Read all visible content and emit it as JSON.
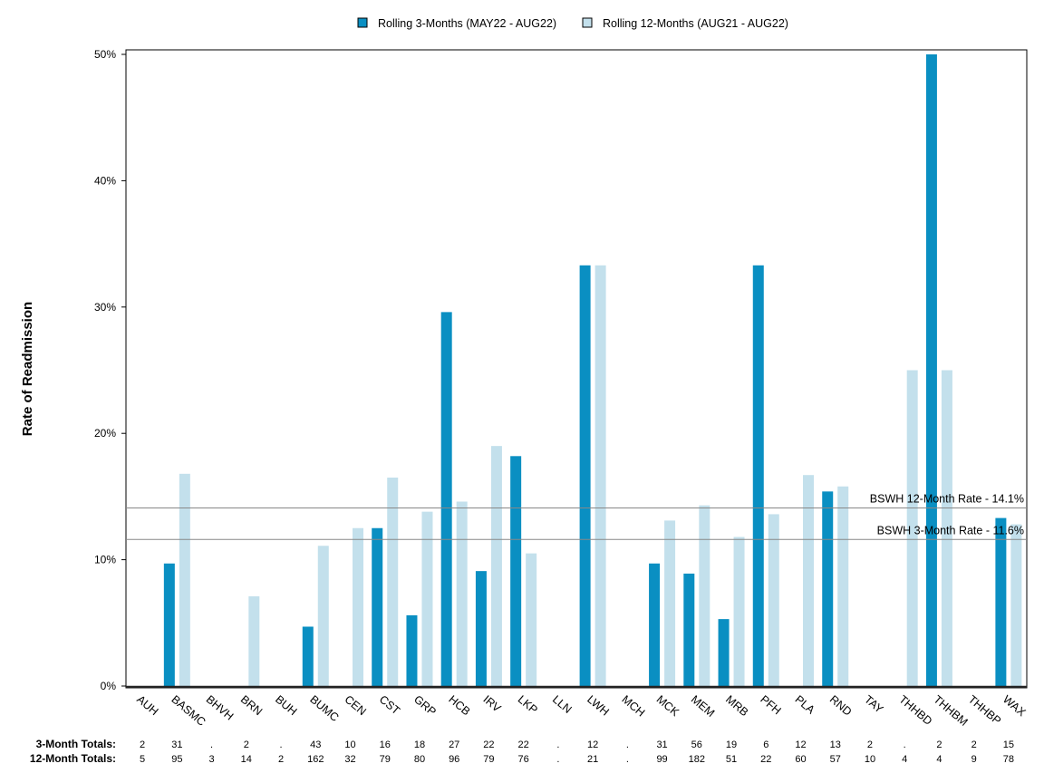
{
  "chart_data": {
    "type": "bar",
    "ylabel": "Rate of Readmission",
    "ylim": [
      0,
      50
    ],
    "yticks": [
      {
        "value": 0,
        "label": "0%"
      },
      {
        "value": 10,
        "label": "10%"
      },
      {
        "value": 20,
        "label": "20%"
      },
      {
        "value": 30,
        "label": "30%"
      },
      {
        "value": 40,
        "label": "40%"
      },
      {
        "value": 50,
        "label": "50%"
      }
    ],
    "grid": false,
    "legend_position": "top-center",
    "categories": [
      "AUH",
      "BASMC",
      "BHVH",
      "BRN",
      "BUH",
      "BUMC",
      "CEN",
      "CST",
      "GRP",
      "HCB",
      "IRV",
      "LKP",
      "LLN",
      "LWH",
      "MCH",
      "MCK",
      "MEM",
      "MRB",
      "PFH",
      "PLA",
      "RND",
      "TAY",
      "THHBD",
      "THHBM",
      "THHBP",
      "WAX"
    ],
    "series": [
      {
        "name": "Rolling 3-Months (MAY22 - AUG22)",
        "color": "#0a8fc2",
        "values": [
          0,
          9.7,
          0,
          0,
          0,
          4.7,
          0,
          12.5,
          5.6,
          29.6,
          9.1,
          18.2,
          0,
          33.3,
          0,
          9.7,
          8.9,
          5.3,
          33.3,
          0,
          15.4,
          0,
          0,
          50.0,
          0,
          13.3
        ]
      },
      {
        "name": "Rolling 12-Months (AUG21 - AUG22)",
        "color": "#c3e0ec",
        "values": [
          0,
          16.8,
          0,
          7.1,
          0,
          11.1,
          12.5,
          16.5,
          13.8,
          14.6,
          19.0,
          10.5,
          0,
          33.3,
          0,
          13.1,
          14.3,
          11.8,
          13.6,
          16.7,
          15.8,
          0,
          25.0,
          25.0,
          0,
          12.8
        ]
      }
    ],
    "reference_lines": [
      {
        "label": "BSWH 12-Month Rate - 14.1%",
        "value": 14.1
      },
      {
        "label": "BSWH  3-Month Rate - 11.6%",
        "value": 11.6
      }
    ],
    "totals": [
      {
        "label": "3-Month Totals:",
        "values": [
          "2",
          "31",
          ".",
          "2",
          ".",
          "43",
          "10",
          "16",
          "18",
          "27",
          "22",
          "22",
          ".",
          "12",
          ".",
          "31",
          "56",
          "19",
          "6",
          "12",
          "13",
          "2",
          ".",
          "2",
          "2",
          "15"
        ]
      },
      {
        "label": "12-Month Totals:",
        "values": [
          "5",
          "95",
          "3",
          "14",
          "2",
          "162",
          "32",
          "79",
          "80",
          "96",
          "79",
          "76",
          ".",
          "21",
          ".",
          "99",
          "182",
          "51",
          "22",
          "60",
          "57",
          "10",
          "4",
          "4",
          "9",
          "78"
        ]
      }
    ]
  }
}
